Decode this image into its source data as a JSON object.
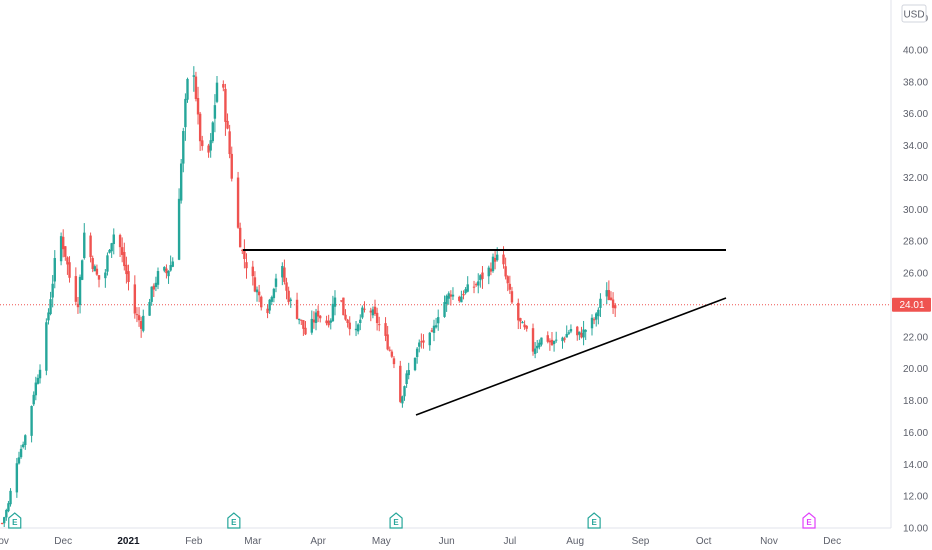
{
  "currency_badge": "USD",
  "colors": {
    "up": "#26a69a",
    "down": "#ef5350",
    "last_price": "#ef5350",
    "event_past": "#26a69a",
    "event_future": "#e040fb",
    "trendline": "#000000"
  },
  "last_price_label": "24.01",
  "chart_data": {
    "type": "candlestick",
    "title": "",
    "y_axis": {
      "side": "right",
      "ylim": [
        10,
        42
      ],
      "ticks": [
        "10.00",
        "12.00",
        "14.00",
        "16.00",
        "18.00",
        "20.00",
        "22.00",
        "24.00",
        "26.00",
        "28.00",
        "30.00",
        "32.00",
        "34.00",
        "36.00",
        "38.00",
        "40.00",
        "42.00"
      ]
    },
    "x_axis": {
      "range": [
        "2020-11-01",
        "2021-12-18"
      ],
      "ticks": [
        {
          "label": "Nov",
          "date": "2020-11-01",
          "bold": false
        },
        {
          "label": "Dec",
          "date": "2020-12-01",
          "bold": false
        },
        {
          "label": "2021",
          "date": "2021-01-01",
          "bold": true
        },
        {
          "label": "Feb",
          "date": "2021-02-01",
          "bold": false
        },
        {
          "label": "Mar",
          "date": "2021-03-01",
          "bold": false
        },
        {
          "label": "Apr",
          "date": "2021-04-01",
          "bold": false
        },
        {
          "label": "May",
          "date": "2021-05-01",
          "bold": false
        },
        {
          "label": "Jun",
          "date": "2021-06-01",
          "bold": false
        },
        {
          "label": "Jul",
          "date": "2021-07-01",
          "bold": false
        },
        {
          "label": "Aug",
          "date": "2021-08-01",
          "bold": false
        },
        {
          "label": "Sep",
          "date": "2021-09-01",
          "bold": false
        },
        {
          "label": "Oct",
          "date": "2021-10-01",
          "bold": false
        },
        {
          "label": "Nov",
          "date": "2021-11-01",
          "bold": false
        },
        {
          "label": "Dec",
          "date": "2021-12-01",
          "bold": false
        }
      ]
    },
    "last_price": 24.01,
    "closes": [
      [
        "2020-11-02",
        10.3
      ],
      [
        "2020-11-05",
        11.5
      ],
      [
        "2020-11-08",
        13.8
      ],
      [
        "2020-11-11",
        15.0
      ],
      [
        "2020-11-14",
        16.2
      ],
      [
        "2020-11-17",
        18.5
      ],
      [
        "2020-11-20",
        20.2
      ],
      [
        "2020-11-23",
        22.6
      ],
      [
        "2020-11-26",
        25.5
      ],
      [
        "2020-11-29",
        28.8
      ],
      [
        "2020-12-02",
        27.2
      ],
      [
        "2020-12-05",
        25.0
      ],
      [
        "2020-12-08",
        24.2
      ],
      [
        "2020-12-11",
        28.5
      ],
      [
        "2020-12-14",
        27.0
      ],
      [
        "2020-12-17",
        25.8
      ],
      [
        "2020-12-20",
        25.2
      ],
      [
        "2020-12-23",
        27.8
      ],
      [
        "2020-12-26",
        28.8
      ],
      [
        "2020-12-29",
        27.0
      ],
      [
        "2021-01-01",
        25.4
      ],
      [
        "2021-01-04",
        23.5
      ],
      [
        "2021-01-07",
        22.8
      ],
      [
        "2021-01-10",
        24.0
      ],
      [
        "2021-01-13",
        25.2
      ],
      [
        "2021-01-16",
        26.2
      ],
      [
        "2021-01-19",
        26.0
      ],
      [
        "2021-01-22",
        26.8
      ],
      [
        "2021-01-25",
        31.0
      ],
      [
        "2021-01-28",
        36.5
      ],
      [
        "2021-01-31",
        40.5
      ],
      [
        "2021-02-03",
        35.5
      ],
      [
        "2021-02-06",
        32.5
      ],
      [
        "2021-02-09",
        34.0
      ],
      [
        "2021-02-12",
        38.0
      ],
      [
        "2021-02-15",
        37.2
      ],
      [
        "2021-02-18",
        33.5
      ],
      [
        "2021-02-21",
        29.5
      ],
      [
        "2021-02-24",
        27.3
      ],
      [
        "2021-02-27",
        26.2
      ],
      [
        "2021-03-02",
        25.2
      ],
      [
        "2021-03-05",
        24.2
      ],
      [
        "2021-03-08",
        23.8
      ],
      [
        "2021-03-11",
        25.3
      ],
      [
        "2021-03-14",
        26.8
      ],
      [
        "2021-03-17",
        24.8
      ],
      [
        "2021-03-20",
        23.8
      ],
      [
        "2021-03-23",
        23.2
      ],
      [
        "2021-03-26",
        22.2
      ],
      [
        "2021-03-29",
        22.8
      ],
      [
        "2021-04-01",
        23.5
      ],
      [
        "2021-04-04",
        22.8
      ],
      [
        "2021-04-07",
        23.2
      ],
      [
        "2021-04-10",
        25.5
      ],
      [
        "2021-04-13",
        23.5
      ],
      [
        "2021-04-16",
        22.8
      ],
      [
        "2021-04-19",
        22.2
      ],
      [
        "2021-04-22",
        23.5
      ],
      [
        "2021-04-25",
        23.8
      ],
      [
        "2021-04-28",
        23.2
      ],
      [
        "2021-05-01",
        22.5
      ],
      [
        "2021-05-04",
        21.5
      ],
      [
        "2021-05-07",
        20.5
      ],
      [
        "2021-05-10",
        18.0
      ],
      [
        "2021-05-13",
        19.5
      ],
      [
        "2021-05-16",
        20.5
      ],
      [
        "2021-05-19",
        21.5
      ],
      [
        "2021-05-22",
        21.8
      ],
      [
        "2021-05-25",
        22.0
      ],
      [
        "2021-05-28",
        23.5
      ],
      [
        "2021-05-31",
        24.2
      ],
      [
        "2021-06-03",
        24.8
      ],
      [
        "2021-06-06",
        24.2
      ],
      [
        "2021-06-09",
        24.8
      ],
      [
        "2021-06-12",
        25.0
      ],
      [
        "2021-06-15",
        25.3
      ],
      [
        "2021-06-18",
        25.8
      ],
      [
        "2021-06-21",
        26.2
      ],
      [
        "2021-06-24",
        27.0
      ],
      [
        "2021-06-27",
        26.8
      ],
      [
        "2021-06-30",
        25.2
      ],
      [
        "2021-07-03",
        23.5
      ],
      [
        "2021-07-06",
        22.8
      ],
      [
        "2021-07-09",
        22.2
      ],
      [
        "2021-07-12",
        21.2
      ],
      [
        "2021-07-15",
        21.8
      ],
      [
        "2021-07-18",
        22.0
      ],
      [
        "2021-07-21",
        21.5
      ],
      [
        "2021-07-24",
        21.8
      ],
      [
        "2021-07-27",
        22.0
      ],
      [
        "2021-07-30",
        22.5
      ],
      [
        "2021-08-02",
        22.0
      ],
      [
        "2021-08-05",
        22.3
      ],
      [
        "2021-08-08",
        22.8
      ],
      [
        "2021-08-11",
        23.2
      ],
      [
        "2021-08-14",
        25.0
      ],
      [
        "2021-08-17",
        24.5
      ],
      [
        "2021-08-20",
        24.01
      ]
    ]
  }
}
